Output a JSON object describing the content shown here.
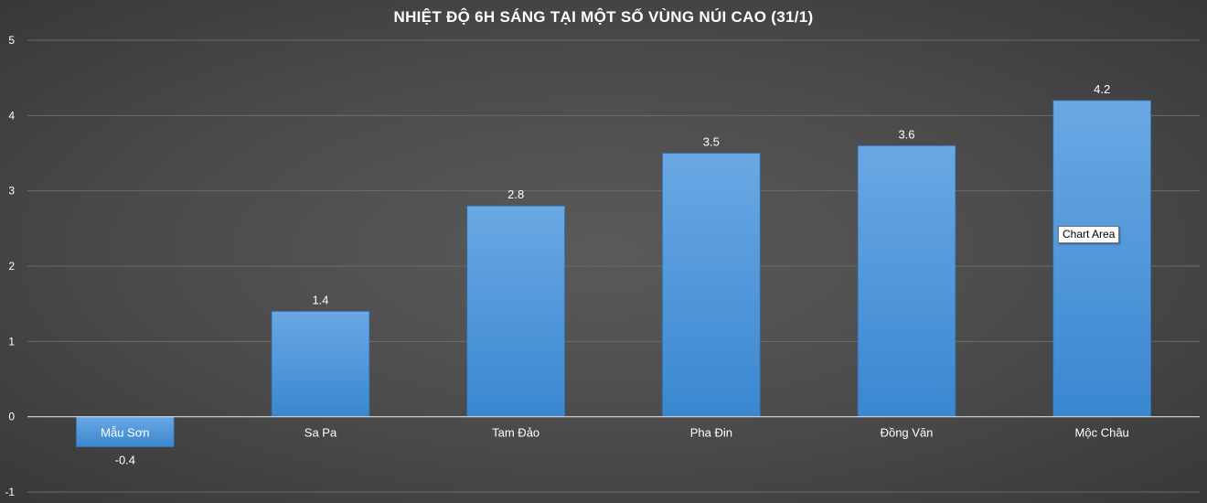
{
  "chart_data": {
    "type": "bar",
    "title": "NHIỆT ĐỘ 6H SÁNG TẠI MỘT SỐ VÙNG NÚI CAO (31/1)",
    "categories": [
      "Mẫu Sơn",
      "Sa Pa",
      "Tam Đảo",
      "Pha Đin",
      "Đồng Văn",
      "Mộc Châu"
    ],
    "values": [
      -0.4,
      1.4,
      2.8,
      3.5,
      3.6,
      4.2
    ],
    "data_labels": [
      "-0.4",
      "1.4",
      "2.8",
      "3.5",
      "3.6",
      "4.2"
    ],
    "ylim": [
      -1,
      5
    ],
    "yticks": [
      -1,
      0,
      1,
      2,
      3,
      4,
      5
    ],
    "xlabel": "",
    "ylabel": "",
    "grid": true,
    "legend": "none",
    "bar_color_top": "#6aa8e4",
    "bar_color_bottom": "#3a87d0",
    "grid_color": "#6b6b6b",
    "axis_color": "#d9d9d9",
    "text_color": "#ffffff"
  },
  "tooltip": {
    "label": "Chart Area"
  }
}
